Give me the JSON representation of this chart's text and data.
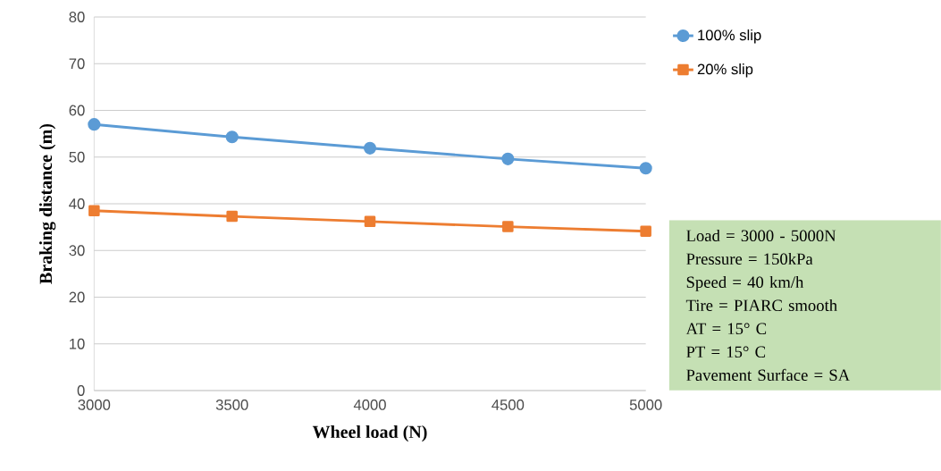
{
  "chart_data": {
    "type": "line",
    "xlabel": "Wheel load (N)",
    "ylabel": "Braking distance (m)",
    "x": [
      3000,
      3500,
      4000,
      4500,
      5000
    ],
    "series": [
      {
        "name": "100% slip",
        "color": "#5b9bd5",
        "marker": "circle",
        "values": [
          57.0,
          54.3,
          51.9,
          49.6,
          47.6
        ]
      },
      {
        "name": "20% slip",
        "color": "#ed7d31",
        "marker": "square",
        "values": [
          38.5,
          37.3,
          36.2,
          35.1,
          34.1
        ]
      }
    ],
    "xlim": [
      3000,
      5000
    ],
    "xticks": [
      3000,
      3500,
      4000,
      4500,
      5000
    ],
    "ylim": [
      0,
      80
    ],
    "yticks": [
      0,
      10,
      20,
      30,
      40,
      50,
      60,
      70,
      80
    ],
    "grid": "y",
    "legend": "top right",
    "annotations": [
      "Load = 3000 - 5000N",
      "Pressure = 150kPa",
      "Speed = 40 km/h",
      "Tire = PIARC smooth",
      "AT = 15° C",
      "PT = 15° C",
      "Pavement Surface = SA"
    ]
  }
}
